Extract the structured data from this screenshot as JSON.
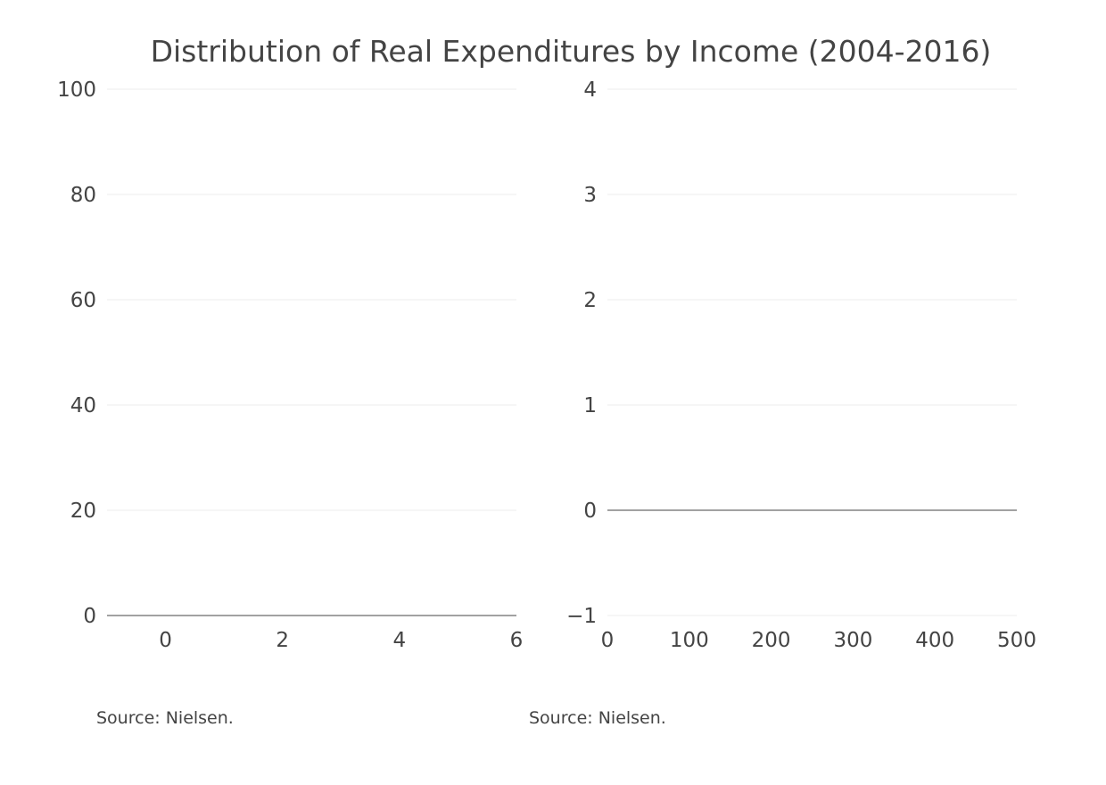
{
  "chart_title": "Distribution of Real Expenditures by Income (2004-2016)",
  "chart_data": [
    {
      "type": "line",
      "title": "",
      "xlabel": "",
      "ylabel": "",
      "xlim": [
        -1,
        6
      ],
      "ylim": [
        0,
        100
      ],
      "x_ticks": [
        0,
        2,
        4,
        6
      ],
      "x_tick_labels": [
        "0",
        "2",
        "4",
        "6"
      ],
      "y_ticks": [
        0,
        20,
        40,
        60,
        80,
        100
      ],
      "y_tick_labels": [
        "0",
        "20",
        "40",
        "60",
        "80",
        "100"
      ],
      "grid": true,
      "zero_line": 0,
      "series": [],
      "source": "Source: Nielsen."
    },
    {
      "type": "line",
      "title": "",
      "xlabel": "",
      "ylabel": "",
      "xlim": [
        0,
        500
      ],
      "ylim": [
        -1,
        4
      ],
      "x_ticks": [
        0,
        100,
        200,
        300,
        400,
        500
      ],
      "x_tick_labels": [
        "0",
        "100",
        "200",
        "300",
        "400",
        "500"
      ],
      "y_ticks": [
        -1,
        0,
        1,
        2,
        3,
        4
      ],
      "y_tick_labels": [
        "−1",
        "0",
        "1",
        "2",
        "3",
        "4"
      ],
      "grid": true,
      "zero_line": 0,
      "series": [],
      "source": "Source: Nielsen."
    }
  ],
  "colors": {
    "text": "#444444",
    "grid": "#eeeeee",
    "zeroline": "#444444",
    "background": "#ffffff"
  }
}
